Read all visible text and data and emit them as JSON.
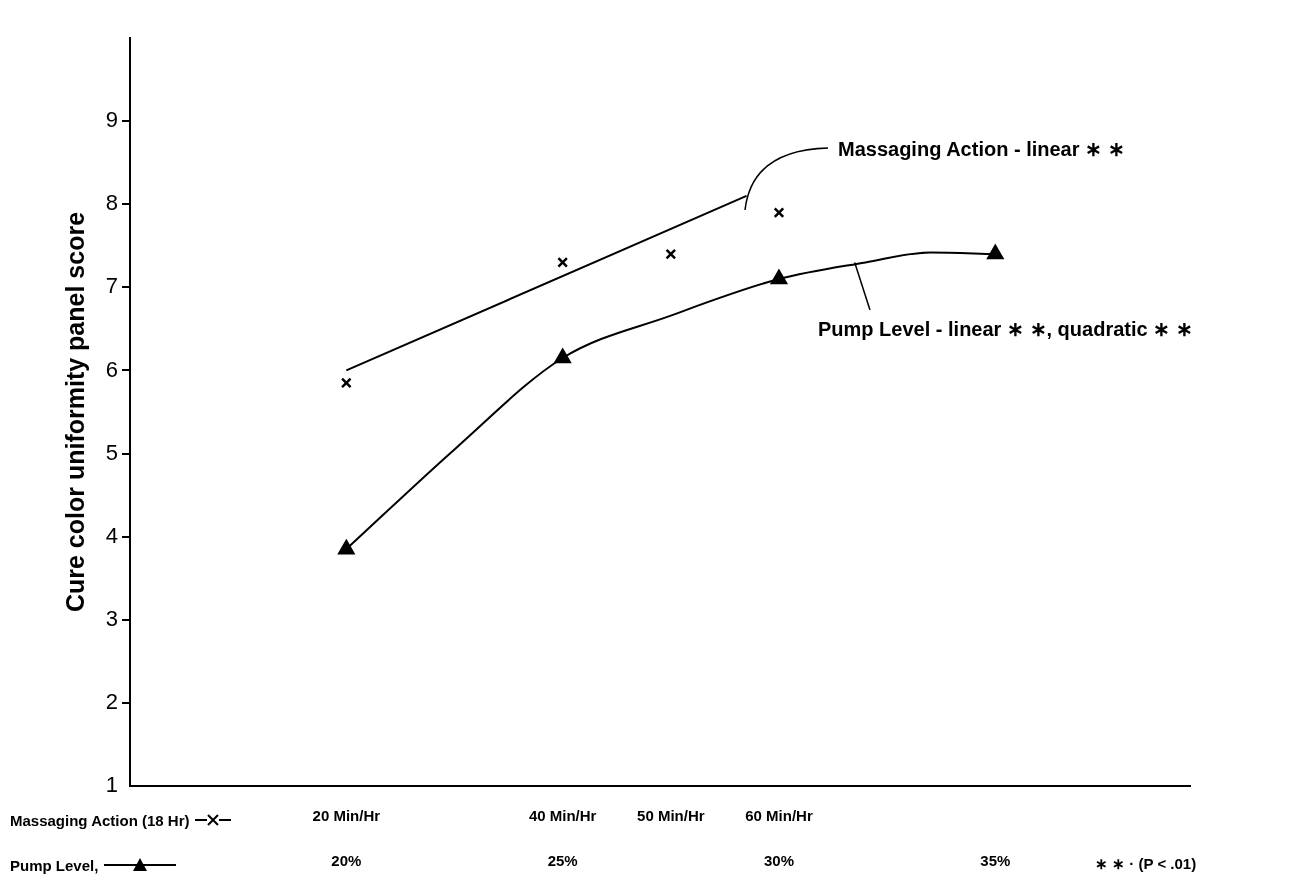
{
  "chart_data": {
    "type": "scatter",
    "ylabel": "Cure color uniformity panel score",
    "xlabel": "Massaging Action (18 Hr)",
    "x2label": "Pump Level,",
    "xlim": [
      0,
      98
    ],
    "xticks": [
      {
        "value": 20,
        "label": "20 Min/Hr"
      },
      {
        "value": 40,
        "label": "40 Min/Hr"
      },
      {
        "value": 50,
        "label": "50 Min/Hr"
      },
      {
        "value": 60,
        "label": "60 Min/Hr"
      }
    ],
    "x2lim": [
      15,
      39.5
    ],
    "x2ticks": [
      {
        "value": 20,
        "label": "20%"
      },
      {
        "value": 25,
        "label": "25%"
      },
      {
        "value": 30,
        "label": "30%"
      },
      {
        "value": 35,
        "label": "35%"
      }
    ],
    "ylim": [
      1,
      10
    ],
    "yticks": [
      1,
      2,
      3,
      4,
      5,
      6,
      7,
      8,
      9
    ],
    "series": [
      {
        "color": "#000000",
        "marker": "cross",
        "x": [
          20,
          40,
          50,
          60
        ],
        "values": [
          5.85,
          7.3,
          7.4,
          7.9
        ]
      },
      {
        "type": "line",
        "color": "#000000",
        "marker": "none",
        "x": [
          20,
          57
        ],
        "values": [
          6.0,
          8.1
        ]
      },
      {
        "axis": "x2",
        "color": "#000000",
        "marker": "triangle",
        "x": [
          20,
          25,
          30,
          35
        ],
        "values": [
          3.85,
          6.15,
          7.1,
          7.4
        ]
      },
      {
        "type": "line",
        "axis": "x2",
        "color": "#000000",
        "marker": "none",
        "x": [
          20,
          22.5,
          25,
          27.5,
          30,
          32,
          33.5,
          35
        ],
        "values": [
          3.85,
          5.05,
          6.15,
          6.66,
          7.1,
          7.3,
          7.42,
          7.4
        ]
      }
    ],
    "annotations": [
      "Massaging Action - linear ∗ ∗",
      {
        "text": "Pump Level - linear ∗ ∗, quadratic ∗ ∗",
        "x": 67,
        "y": 7.3
      },
      "∗ ∗ · (P < .01)"
    ]
  }
}
